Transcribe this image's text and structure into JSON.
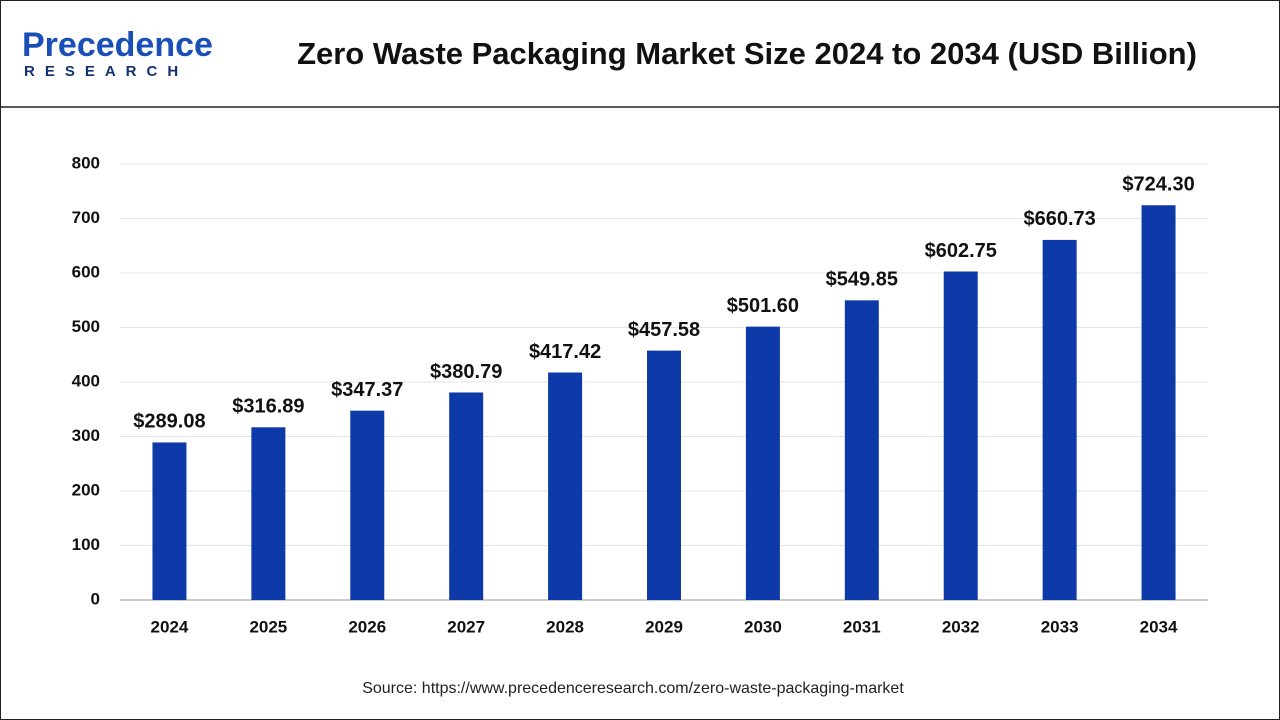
{
  "logo": {
    "name": "Precedence",
    "tagline": "RESEARCH"
  },
  "chart_data": {
    "type": "bar",
    "title": "Zero Waste Packaging Market Size 2024 to 2034 (USD Billion)",
    "categories": [
      "2024",
      "2025",
      "2026",
      "2027",
      "2028",
      "2029",
      "2030",
      "2031",
      "2032",
      "2033",
      "2034"
    ],
    "values": [
      289.08,
      316.89,
      347.37,
      380.79,
      417.42,
      457.58,
      501.6,
      549.85,
      602.75,
      660.73,
      724.3
    ],
    "value_labels": [
      "$289.08",
      "$316.89",
      "$347.37",
      "$380.79",
      "$417.42",
      "$457.58",
      "$501.60",
      "$549.85",
      "$602.75",
      "$660.73",
      "$724.30"
    ],
    "color": "#0e3aa9",
    "ylim": [
      0,
      800
    ],
    "yticks": [
      0,
      100,
      200,
      300,
      400,
      500,
      600,
      700,
      800
    ],
    "grid": true,
    "source": "Source: https://www.precedenceresearch.com/zero-waste-packaging-market"
  }
}
